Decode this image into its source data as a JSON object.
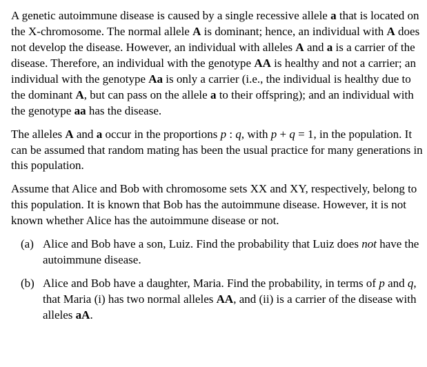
{
  "para1": {
    "t1": "A genetic autoimmune disease is caused by a single recessive allele ",
    "a1": "a",
    "t2": " that is located on the X-chromosome. The normal allele ",
    "a2": "A",
    "t3": " is dominant; hence, an individual with ",
    "a3": "A",
    "t4": " does not develop the disease. However, an individual with alleles ",
    "a4": "A",
    "t5": " and ",
    "a5": "a",
    "t6": " is a carrier of the disease. Therefore, an individual with the genotype ",
    "a6": "AA",
    "t7": " is healthy and not a carrier; an individual with the genotype ",
    "a7": "Aa",
    "t8": " is only a carrier (i.e., the individual is healthy due to the dominant ",
    "a8": "A",
    "t9": ", but can pass on the allele ",
    "a9": "a",
    "t10": " to their offspring); and an individual with the genotype ",
    "a10": "aa",
    "t11": " has the disease."
  },
  "para2": {
    "t1": "The alleles ",
    "a1": "A",
    "t2": " and ",
    "a2": "a",
    "t3": " occur in the proportions ",
    "m1": "p",
    "t4": " : ",
    "m2": "q",
    "t5": ", with ",
    "m3": "p",
    "t6": " + ",
    "m4": "q",
    "t7": " = 1, in the population. It can be assumed that random mating has been the usual practice for many generations in this population."
  },
  "para3": {
    "t1": "Assume that Alice and Bob with chromosome sets XX and XY, respectively, belong to this population. It is known that Bob has the autoimmune disease. However, it is not known whether Alice has the autoimmune disease or not."
  },
  "partA": {
    "label": "(a)",
    "t1": "Alice and Bob have a son, Luiz. Find the probability that Luiz does ",
    "i1": "not",
    "t2": " have the autoimmune disease."
  },
  "partB": {
    "label": "(b)",
    "t1": "Alice and Bob have a daughter, Maria. Find the probability, in terms of ",
    "m1": "p",
    "t2": " and ",
    "m2": "q",
    "t3": ", that Maria (i) has two normal alleles ",
    "a1": "AA",
    "t4": ", and (ii) is a carrier of the disease with alleles ",
    "a2": "aA",
    "t5": "."
  }
}
